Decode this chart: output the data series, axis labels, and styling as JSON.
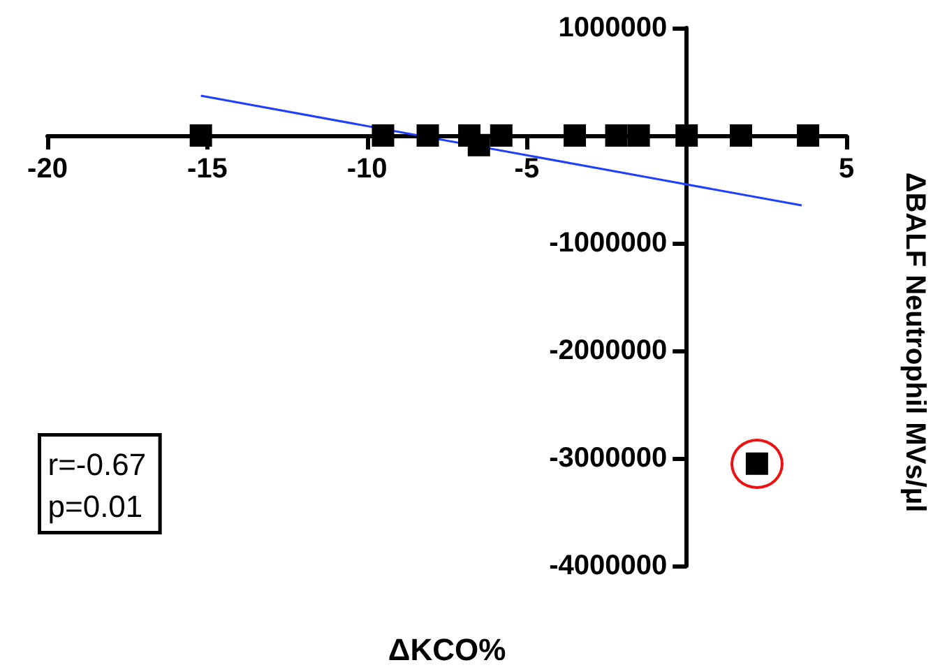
{
  "chart_data": {
    "type": "scatter",
    "xlabel": "ΔKCO%",
    "ylabel": "ΔBALF Neutrophil MVs/μl",
    "annotations": [
      "r=-0.67",
      "p=0.01"
    ],
    "xlim": [
      -20,
      5
    ],
    "xticks": [
      -20,
      -15,
      -10,
      -5,
      5
    ],
    "ylim": [
      -4000000,
      1000000
    ],
    "yticks": [
      -4000000,
      -3000000,
      -2000000,
      -1000000,
      1000000
    ],
    "marker": "square",
    "series": [
      {
        "color": "#000000",
        "x": [
          -15.2,
          -9.5,
          -8.1,
          -6.8,
          -6.5,
          -5.8,
          -3.5,
          -2.2,
          -1.5,
          0,
          1.7,
          3.8,
          2.2
        ],
        "values": [
          0,
          0,
          0,
          0,
          -90000,
          0,
          0,
          0,
          0,
          0,
          0,
          0,
          -3050000
        ]
      },
      {
        "type": "line",
        "color": "#1f3fff",
        "marker": "none",
        "x": [
          -15.2,
          3.6
        ],
        "values": [
          370000,
          -650000
        ]
      }
    ]
  }
}
